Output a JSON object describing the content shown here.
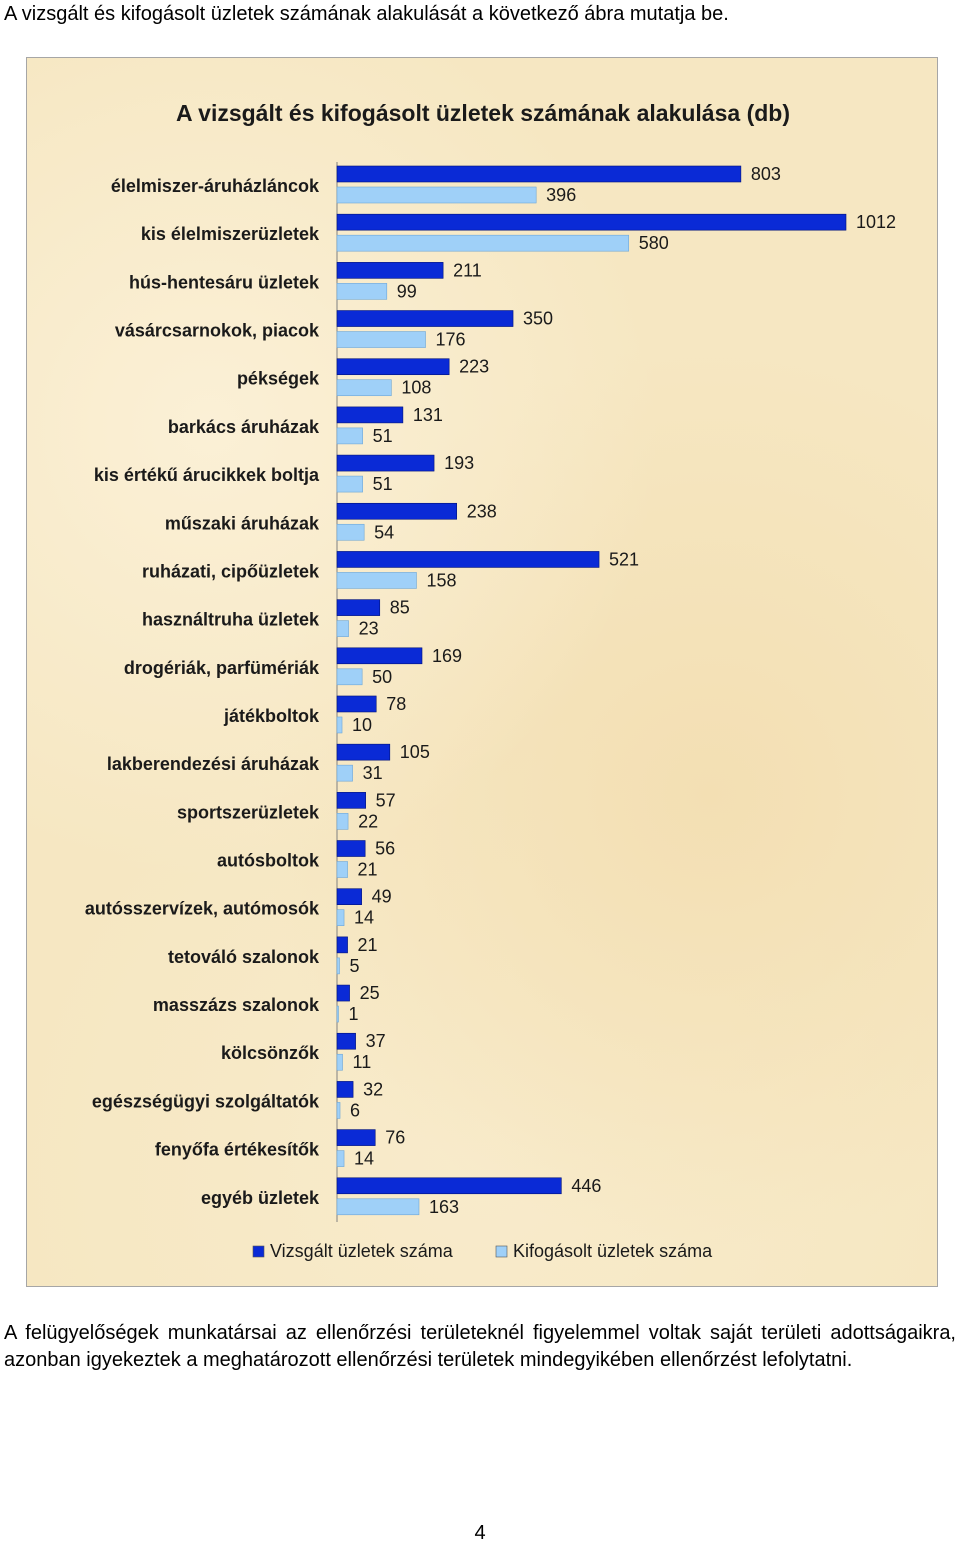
{
  "intro_text": "A vizsgált és kifogásolt üzletek számának alakulását a következő ábra mutatja be.",
  "paragraph": "A felügyelőségek munkatársai az ellenőrzési területeknél figyelemmel voltak saját területi adottságaikra, azonban igyekeztek a meghatározott ellenőrzési területek mindegyikében ellenőrzést lefolytatni.",
  "page_number": "4",
  "chart_data": {
    "type": "bar",
    "orientation": "horizontal",
    "title": "A vizsgált és kifogásolt üzletek számának alakulása (db)",
    "categories": [
      "élelmiszer-áruházláncok",
      "kis élelmiszerüzletek",
      "hús-hentesáru üzletek",
      "vásárcsarnokok, piacok",
      "pékségek",
      "barkács áruházak",
      "kis értékű árucikkek boltja",
      "műszaki áruházak",
      "ruházati, cipőüzletek",
      "használtruha üzletek",
      "drogériák, parfümériák",
      "játékboltok",
      "lakberendezési áruházak",
      "sportszerüzletek",
      "autósboltok",
      "autósszervízek, autómosók",
      "tetováló szalonok",
      "masszázs szalonok",
      "kölcsönzők",
      "egészségügyi szolgáltatók",
      "fenyőfa értékesítők",
      "egyéb üzletek"
    ],
    "series": [
      {
        "name": "Vizsgált üzletek száma",
        "color": "#0a2ad6",
        "values": [
          803,
          1012,
          211,
          350,
          223,
          131,
          193,
          238,
          521,
          85,
          169,
          78,
          105,
          57,
          56,
          49,
          21,
          25,
          37,
          32,
          76,
          446
        ]
      },
      {
        "name": "Kifogásolt üzletek száma",
        "color": "#9fd0f8",
        "values": [
          396,
          580,
          99,
          176,
          108,
          51,
          51,
          54,
          158,
          23,
          50,
          10,
          31,
          22,
          21,
          14,
          5,
          1,
          11,
          6,
          14,
          163
        ]
      }
    ],
    "xlim": [
      0,
      1012
    ],
    "grid": false,
    "legend_position": "bottom"
  }
}
